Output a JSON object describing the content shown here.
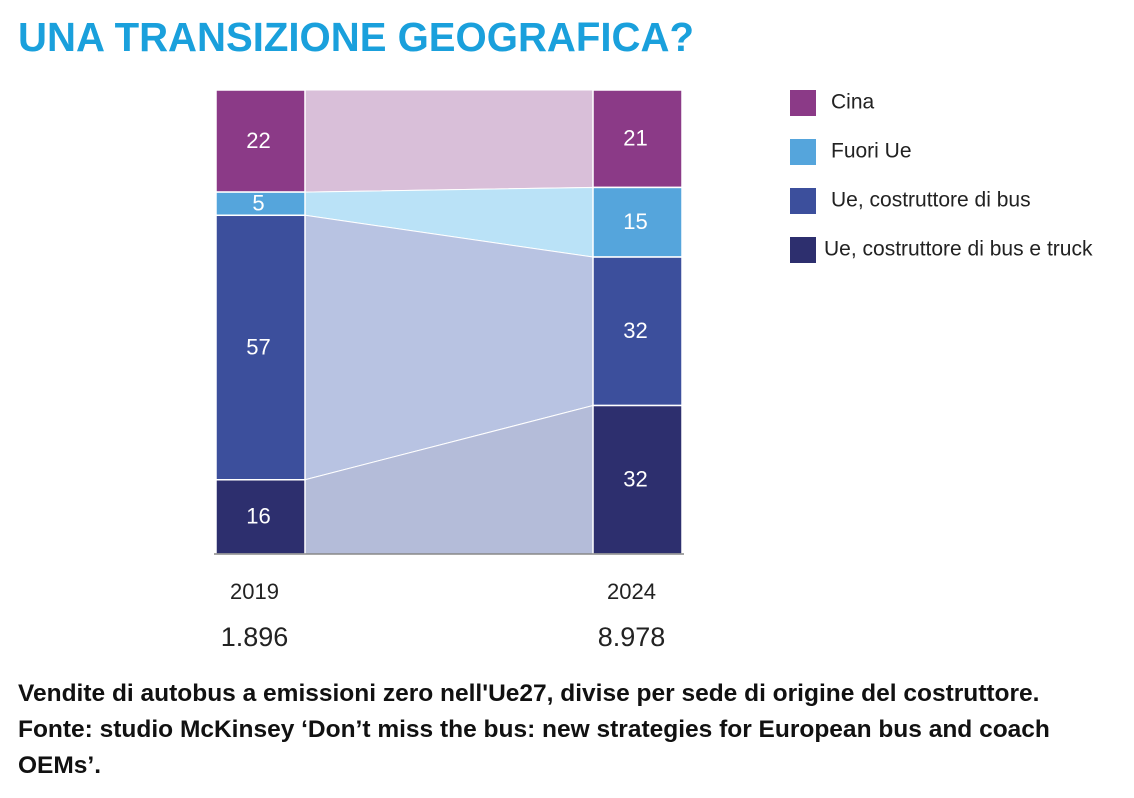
{
  "chart_data": {
    "type": "stacked-bar-ribbon",
    "title": "UNA TRANSIZIONE GEOGRAFICA?",
    "categories": [
      "2019",
      "2024"
    ],
    "category_totals": [
      {
        "value": 1896,
        "label": "1.896"
      },
      {
        "value": 8978,
        "label": "8.978"
      }
    ],
    "ylim": [
      0,
      100
    ],
    "series": [
      {
        "name": "Cina",
        "color": "#8b3a87",
        "ribbon_color": "#d9bfd9",
        "values": [
          22,
          21
        ]
      },
      {
        "name": "Fuori Ue",
        "color": "#55a5dc",
        "ribbon_color": "#bae2f7",
        "values": [
          5,
          15
        ]
      },
      {
        "name": "Ue, costruttore di bus",
        "color": "#3c4f9c",
        "ribbon_color": "#b8c3e2",
        "values": [
          57,
          32
        ]
      },
      {
        "name": "Ue, costruttore di bus e truck",
        "color": "#2d2f6e",
        "ribbon_color": "#b4bcd9",
        "values": [
          16,
          32
        ]
      }
    ],
    "caption": "Vendite di autobus a emissioni zero nell'Ue27, divise per sede di origine del costruttore. Fonte: studio McKinsey ‘Don’t miss the bus: new strategies for European bus and coach OEMs’."
  }
}
